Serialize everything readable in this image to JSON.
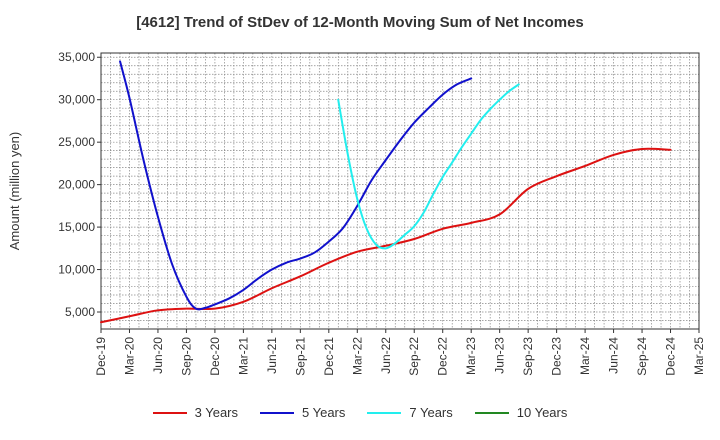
{
  "chart_data": {
    "type": "line",
    "title": "[4612]  Trend of StDev of 12-Month Moving Sum of Net Incomes",
    "ylabel": "Amount (million yen)",
    "xlabel": "",
    "x_categories": [
      "Dec-19",
      "Mar-20",
      "Jun-20",
      "Sep-20",
      "Dec-20",
      "Mar-21",
      "Jun-21",
      "Sep-21",
      "Dec-21",
      "Mar-22",
      "Jun-22",
      "Sep-22",
      "Dec-22",
      "Mar-23",
      "Jun-23",
      "Sep-23",
      "Dec-23",
      "Mar-24",
      "Jun-24",
      "Sep-24",
      "Dec-24",
      "Mar-25"
    ],
    "y_ticks": [
      "5,000",
      "10,000",
      "15,000",
      "20,000",
      "25,000",
      "30,000",
      "35,000"
    ],
    "y_tick_values": [
      5000,
      10000,
      15000,
      20000,
      25000,
      30000,
      35000
    ],
    "ylim": [
      3000,
      35500
    ],
    "grid": true,
    "legend_position": "bottom",
    "series": [
      {
        "name": "3 Years",
        "color": "#dd1111",
        "points": [
          [
            0,
            3800
          ],
          [
            1,
            4500
          ],
          [
            2,
            5200
          ],
          [
            3,
            5400
          ],
          [
            4,
            5400
          ],
          [
            5,
            6200
          ],
          [
            6,
            7800
          ],
          [
            7,
            9200
          ],
          [
            8,
            10800
          ],
          [
            9,
            12100
          ],
          [
            10,
            12800
          ],
          [
            11,
            13600
          ],
          [
            12,
            14800
          ],
          [
            13,
            15500
          ],
          [
            14,
            16500
          ],
          [
            15,
            19500
          ],
          [
            16,
            21000
          ],
          [
            17,
            22200
          ],
          [
            18,
            23500
          ],
          [
            19,
            24200
          ],
          [
            20,
            24100
          ]
        ]
      },
      {
        "name": "5 Years",
        "color": "#1111cc",
        "points": [
          [
            0.67,
            34500
          ],
          [
            1,
            30200
          ],
          [
            1.5,
            22800
          ],
          [
            2,
            16200
          ],
          [
            2.5,
            10600
          ],
          [
            3,
            6800
          ],
          [
            3.33,
            5400
          ],
          [
            3.67,
            5500
          ],
          [
            4,
            5900
          ],
          [
            4.5,
            6600
          ],
          [
            5,
            7600
          ],
          [
            5.5,
            8900
          ],
          [
            6,
            10000
          ],
          [
            6.5,
            10800
          ],
          [
            7,
            11300
          ],
          [
            7.5,
            12000
          ],
          [
            8,
            13300
          ],
          [
            8.5,
            14900
          ],
          [
            9,
            17500
          ],
          [
            9.5,
            20500
          ],
          [
            10,
            22900
          ],
          [
            10.5,
            25200
          ],
          [
            11,
            27300
          ],
          [
            11.5,
            29000
          ],
          [
            12,
            30600
          ],
          [
            12.5,
            31800
          ],
          [
            13,
            32500
          ]
        ]
      },
      {
        "name": "7 Years",
        "color": "#22eeee",
        "points": [
          [
            8.33,
            30000
          ],
          [
            8.67,
            23500
          ],
          [
            9,
            18300
          ],
          [
            9.33,
            14800
          ],
          [
            9.67,
            12900
          ],
          [
            10,
            12500
          ],
          [
            10.33,
            13100
          ],
          [
            10.67,
            14100
          ],
          [
            11,
            15100
          ],
          [
            11.33,
            16700
          ],
          [
            11.67,
            18900
          ],
          [
            12,
            20900
          ],
          [
            12.33,
            22600
          ],
          [
            12.67,
            24400
          ],
          [
            13,
            26000
          ],
          [
            13.33,
            27600
          ],
          [
            13.67,
            28900
          ],
          [
            14,
            30000
          ],
          [
            14.33,
            31000
          ],
          [
            14.67,
            31800
          ]
        ]
      },
      {
        "name": "10 Years",
        "color": "#228822",
        "points": []
      }
    ]
  }
}
